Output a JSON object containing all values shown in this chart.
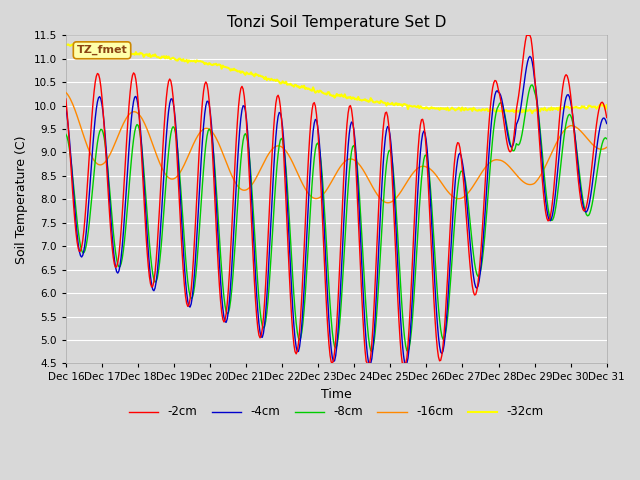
{
  "title": "Tonzi Soil Temperature Set D",
  "xlabel": "Time",
  "ylabel": "Soil Temperature (C)",
  "xlim": [
    0,
    15
  ],
  "ylim": [
    4.5,
    11.5
  ],
  "yticks": [
    4.5,
    5.0,
    5.5,
    6.0,
    6.5,
    7.0,
    7.5,
    8.0,
    8.5,
    9.0,
    9.5,
    10.0,
    10.5,
    11.0,
    11.5
  ],
  "xtick_labels": [
    "Dec 16",
    "Dec 17",
    "Dec 18",
    "Dec 19",
    "Dec 20",
    "Dec 21",
    "Dec 22",
    "Dec 23",
    "Dec 24",
    "Dec 25",
    "Dec 26",
    "Dec 27",
    "Dec 28",
    "Dec 29",
    "Dec 30",
    "Dec 31"
  ],
  "legend_label": "TZ_fmet",
  "background_color": "#e0e0e0",
  "plot_bg_color": "#d8d8d8",
  "grid_color": "#c8c8c8",
  "series": {
    "-2cm": {
      "color": "#ff0000",
      "lw": 1.0
    },
    "-4cm": {
      "color": "#0000cc",
      "lw": 1.0
    },
    "-8cm": {
      "color": "#00cc00",
      "lw": 1.0
    },
    "-16cm": {
      "color": "#ff8800",
      "lw": 1.0
    },
    "-32cm": {
      "color": "#ffff00",
      "lw": 1.5
    }
  },
  "n_points": 480
}
